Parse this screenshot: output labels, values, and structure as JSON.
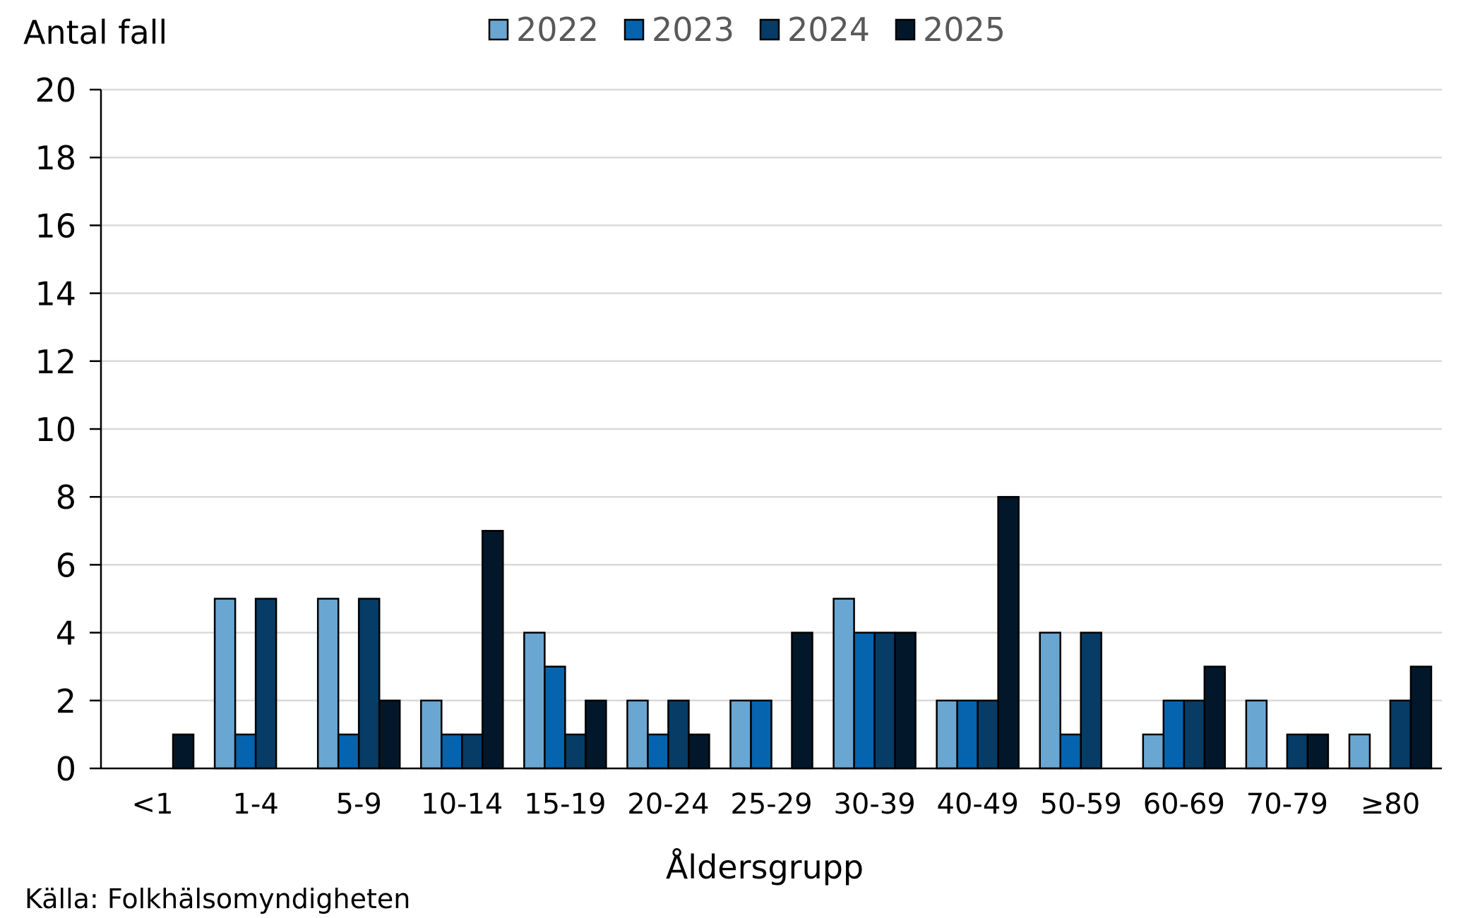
{
  "chart_data": {
    "type": "bar",
    "ylabel": "Antal fall",
    "xlabel": "Åldersgrupp",
    "ylim": [
      0,
      20
    ],
    "yticks": [
      "0",
      "2",
      "4",
      "6",
      "8",
      "10",
      "12",
      "14",
      "16",
      "18",
      "20"
    ],
    "grid": true,
    "legend_position": "top",
    "categories": [
      "<1",
      "1-4",
      "5-9",
      "10-14",
      "15-19",
      "20-24",
      "25-29",
      "30-39",
      "40-49",
      "50-59",
      "60-69",
      "70-79",
      "≥80"
    ],
    "series": [
      {
        "name": "2022",
        "color": "#6aa6d2",
        "values": [
          0,
          5,
          5,
          2,
          4,
          2,
          2,
          5,
          2,
          4,
          1,
          2,
          1
        ]
      },
      {
        "name": "2023",
        "color": "#0663ae",
        "values": [
          0,
          1,
          1,
          1,
          3,
          1,
          2,
          4,
          2,
          1,
          2,
          0,
          0
        ]
      },
      {
        "name": "2024",
        "color": "#063c66",
        "values": [
          0,
          5,
          5,
          1,
          1,
          2,
          0,
          4,
          2,
          4,
          2,
          1,
          2
        ]
      },
      {
        "name": "2025",
        "color": "#02182a",
        "values": [
          1,
          0,
          2,
          7,
          2,
          1,
          4,
          4,
          8,
          0,
          3,
          1,
          3
        ]
      }
    ]
  },
  "source": "Källa: Folkhälsomyndigheten"
}
